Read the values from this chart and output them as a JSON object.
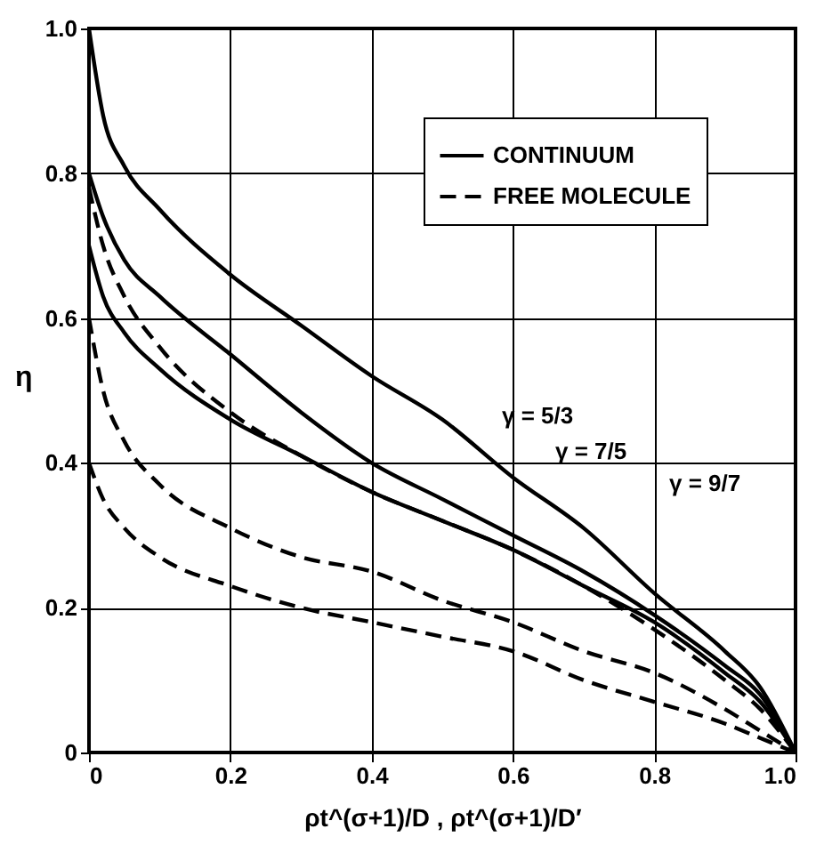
{
  "chart_data": {
    "type": "line",
    "xlabel": "ρt^(σ+1)/D ,  ρt^(σ+1)/D′",
    "ylabel": "η",
    "xlim": [
      0,
      1.0
    ],
    "ylim": [
      0,
      1.0
    ],
    "xticks": [
      {
        "value": 0,
        "label": "0"
      },
      0.2,
      0.4,
      0.6,
      0.8,
      {
        "value": 1.0,
        "label": "1.0"
      }
    ],
    "yticks": [
      {
        "value": 0,
        "label": "0"
      },
      0.2,
      0.4,
      0.6,
      0.8,
      {
        "value": 1.0,
        "label": "1.0"
      }
    ],
    "grid": true,
    "legend": "top right",
    "marker": "none",
    "x": [
      0,
      0.02,
      0.05,
      0.1,
      0.2,
      0.3,
      0.4,
      0.5,
      0.6,
      0.7,
      0.8,
      0.9,
      0.95,
      1.0
    ],
    "series": [
      {
        "name": "CONTINUUM",
        "color": "#000000",
        "line_style": "solid",
        "values": [
          1.0,
          0.88,
          0.81,
          0.75,
          0.66,
          0.59,
          0.52,
          0.46,
          0.38,
          0.31,
          0.22,
          0.14,
          0.09,
          0
        ]
      },
      {
        "color": "#000000",
        "line_style": "solid",
        "values": [
          0.8,
          0.74,
          0.68,
          0.63,
          0.55,
          0.47,
          0.4,
          0.35,
          0.3,
          0.25,
          0.19,
          0.12,
          0.08,
          0
        ]
      },
      {
        "color": "#000000",
        "line_style": "solid",
        "values": [
          0.7,
          0.63,
          0.58,
          0.53,
          0.46,
          0.41,
          0.36,
          0.32,
          0.28,
          0.23,
          0.18,
          0.11,
          0.07,
          0
        ]
      },
      {
        "name": "FREE MOLECULE",
        "color": "#000000",
        "line_style": "dashed",
        "values": [
          0.78,
          0.7,
          0.63,
          0.56,
          0.47,
          0.41,
          0.36,
          0.32,
          0.28,
          0.23,
          0.17,
          0.1,
          0.06,
          0
        ]
      },
      {
        "color": "#000000",
        "line_style": "dashed",
        "values": [
          0.6,
          0.5,
          0.43,
          0.37,
          0.31,
          0.27,
          0.25,
          0.21,
          0.18,
          0.14,
          0.11,
          0.06,
          0.03,
          0
        ]
      },
      {
        "color": "#000000",
        "line_style": "dashed",
        "values": [
          0.4,
          0.35,
          0.31,
          0.27,
          0.23,
          0.2,
          0.18,
          0.16,
          0.14,
          0.1,
          0.07,
          0.04,
          0.02,
          0
        ]
      }
    ],
    "annotations": [
      "γ = 5/3",
      "γ = 7/5",
      "γ = 9/7"
    ]
  }
}
